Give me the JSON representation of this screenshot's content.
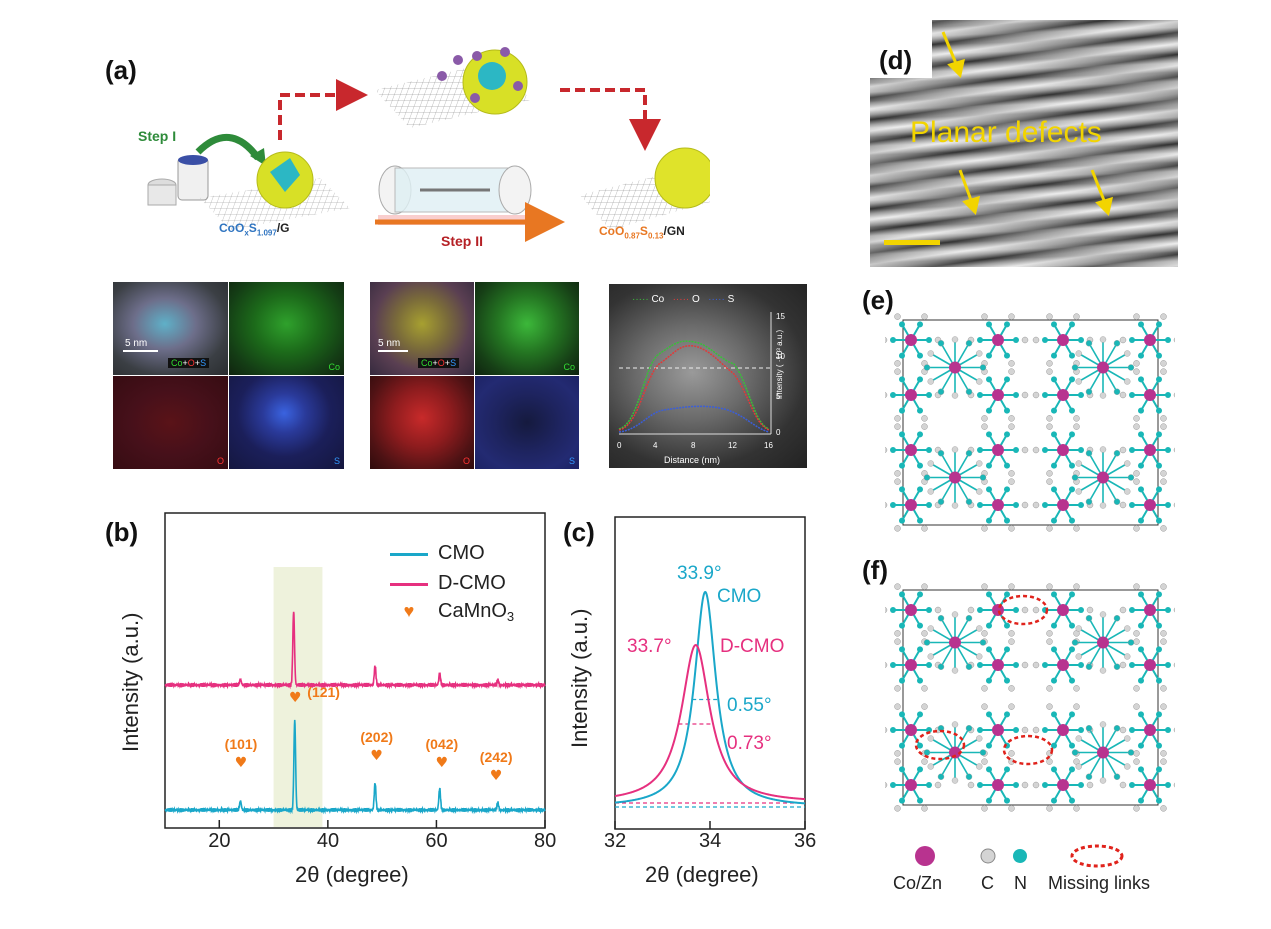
{
  "panel_labels": {
    "a": "(a)",
    "b": "(b)",
    "c": "(c)",
    "d": "(d)",
    "e": "(e)",
    "f": "(f)"
  },
  "scheme": {
    "step1": "Step I",
    "step2": "Step II",
    "left_label": {
      "base": "CoO",
      "x": "x",
      "s": "S",
      "s_sub": "1.097",
      "tail": "/G"
    },
    "right_label": {
      "base": "CoO",
      "o_sub": "0.87",
      "s": "S",
      "s_sub": "0.13",
      "tail": "/GN"
    }
  },
  "eds": {
    "scale_bar": "5 nm",
    "composite": [
      "Co",
      "+",
      "O",
      "+",
      "S"
    ],
    "co": "Co",
    "o": "O",
    "s": "S"
  },
  "linescan": {
    "legend": [
      "Co",
      "O",
      "S"
    ],
    "xlabel": "Distance (nm)",
    "ylabel": "Intensity ( ·10³ a.u.)",
    "xticks": [
      "0",
      "4",
      "8",
      "12",
      "16"
    ],
    "yticks": [
      "0",
      "5",
      "10",
      "15"
    ]
  },
  "tem": {
    "annotation": "Planar defects"
  },
  "structure_legend": {
    "cozn": "Co/Zn",
    "c": "C",
    "n": "N",
    "missing": "Missing links"
  },
  "colors": {
    "cmo": "#1aa7c9",
    "dcmo": "#e6307f",
    "peak": "#f07a19",
    "co_zn": "#b8338f",
    "n": "#19b7b7",
    "c": "#bdbdbd",
    "missing": "#e0231c"
  },
  "chart_data": [
    {
      "type": "line",
      "title": "",
      "xlabel": "2θ (degree)",
      "ylabel": "Intensity (a.u.)",
      "xlim": [
        10,
        80
      ],
      "xticks": [
        20,
        40,
        60,
        80
      ],
      "x_tick_labels": [
        "20",
        "40",
        "60",
        "80"
      ],
      "legend": [
        "CMO",
        "D-CMO",
        "CaMnO3"
      ],
      "legend_parts": {
        "cmo": "CMO",
        "dcmo": "D-CMO",
        "camno_base": "CaMnO",
        "camno_sub": "3"
      },
      "highlight_range": [
        30,
        39
      ],
      "series": [
        {
          "name": "CMO",
          "peaks": [
            {
              "x": 23.9,
              "h": 0.1
            },
            {
              "x": 33.9,
              "h": 1.0
            },
            {
              "x": 48.7,
              "h": 0.3
            },
            {
              "x": 60.6,
              "h": 0.24
            },
            {
              "x": 71.3,
              "h": 0.08
            }
          ]
        },
        {
          "name": "D-CMO",
          "peaks": [
            {
              "x": 23.9,
              "h": 0.06
            },
            {
              "x": 33.7,
              "h": 0.78
            },
            {
              "x": 48.7,
              "h": 0.2
            },
            {
              "x": 60.6,
              "h": 0.12
            },
            {
              "x": 71.3,
              "h": 0.05
            }
          ]
        }
      ],
      "annotations": [
        {
          "x": 24,
          "label": "(101)"
        },
        {
          "x": 34,
          "label": "(121)"
        },
        {
          "x": 49,
          "label": "(202)"
        },
        {
          "x": 61,
          "label": "(042)"
        },
        {
          "x": 71,
          "label": "(242)"
        }
      ]
    },
    {
      "type": "line",
      "title": "",
      "xlabel": "2θ (degree)",
      "ylabel": "Intensity (a.u.)",
      "xlim": [
        32,
        36
      ],
      "xticks": [
        32,
        34,
        36
      ],
      "x_tick_labels": [
        "32",
        "34",
        "36"
      ],
      "series": [
        {
          "name": "CMO",
          "peak_position": 33.9,
          "fwhm": 0.55
        },
        {
          "name": "D-CMO",
          "peak_position": 33.7,
          "fwhm": 0.73
        }
      ],
      "labels": {
        "cmo_peak": "33.9°",
        "cmo_name": "CMO",
        "dcmo_peak": "33.7°",
        "dcmo_name": "D-CMO",
        "cmo_fwhm": "0.55°",
        "dcmo_fwhm": "0.73°"
      }
    }
  ]
}
